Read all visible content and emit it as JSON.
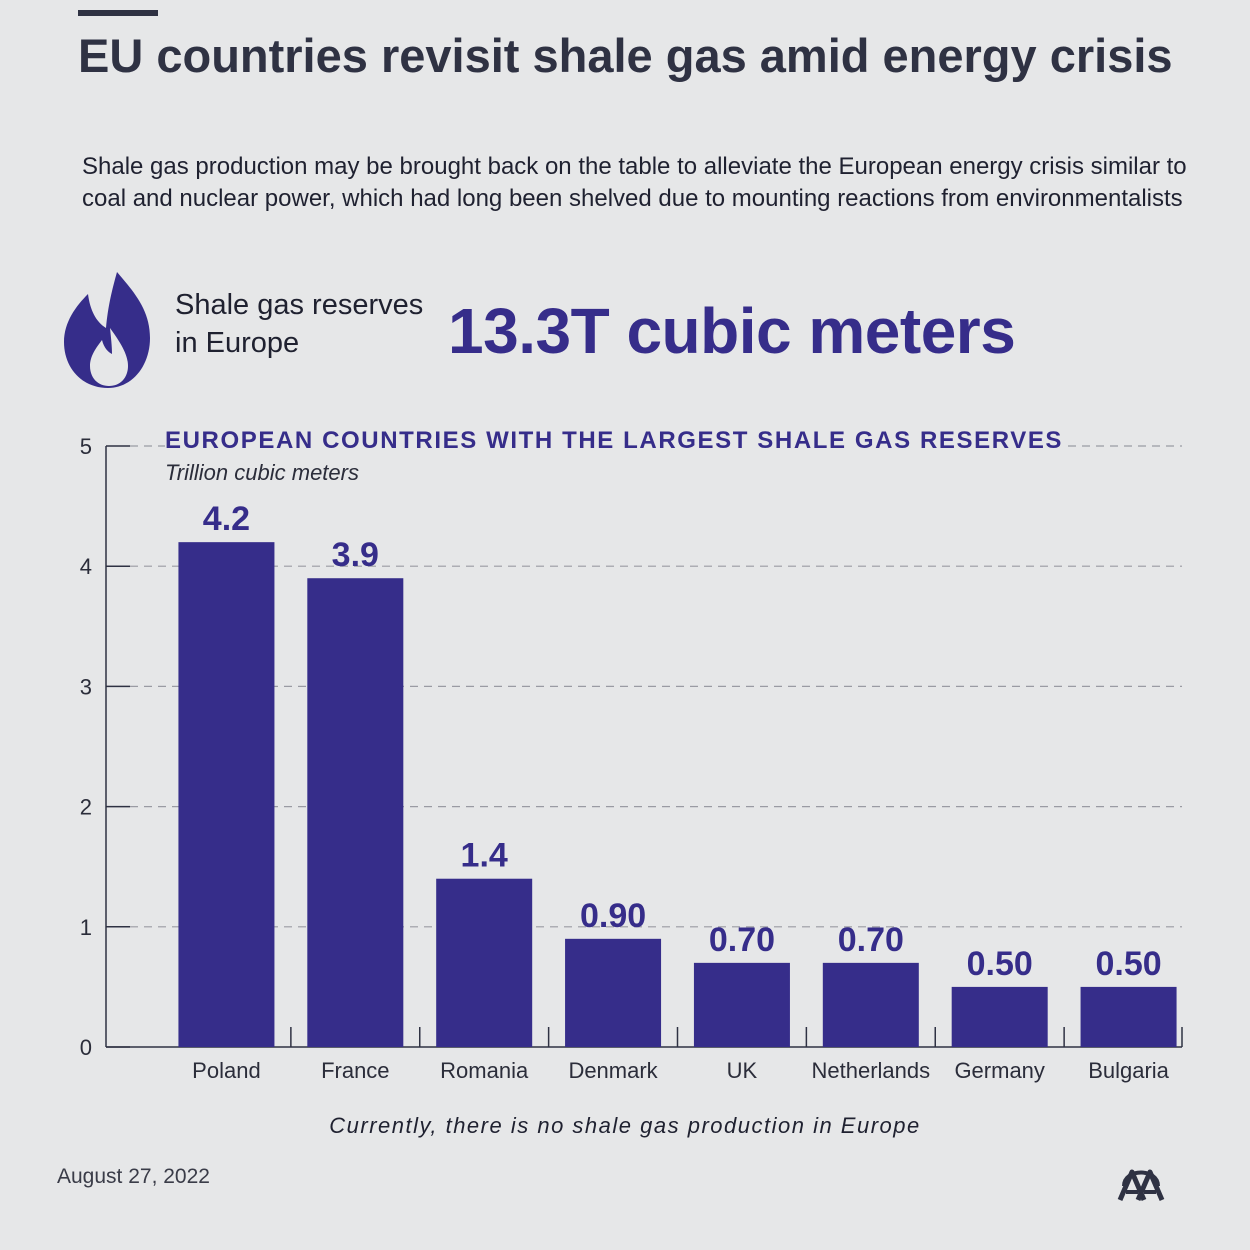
{
  "header": {
    "title": "EU countries revisit shale gas amid energy crisis",
    "subtitle": "Shale gas production may be brought back on the table to alleviate the European energy crisis similar to coal and nuclear power, which had long been shelved due to mounting reactions from environmentalists"
  },
  "stat": {
    "icon": "flame-icon",
    "label": "Shale gas reserves in Europe",
    "value": "13.3T cubic meters"
  },
  "chart_data": {
    "type": "bar",
    "title": "EUROPEAN COUNTRIES WITH THE LARGEST SHALE GAS RESERVES",
    "unit": "Trillion cubic meters",
    "categories": [
      "Poland",
      "France",
      "Romania",
      "Denmark",
      "UK",
      "Netherlands",
      "Germany",
      "Bulgaria"
    ],
    "values": [
      4.2,
      3.9,
      1.4,
      0.9,
      0.7,
      0.7,
      0.5,
      0.5
    ],
    "value_labels": [
      "4.2",
      "3.9",
      "1.4",
      "0.90",
      "0.70",
      "0.70",
      "0.50",
      "0.50"
    ],
    "ylim": [
      0,
      5
    ],
    "yticks": [
      "0",
      "1",
      "2",
      "3",
      "4",
      "5"
    ],
    "grid": true,
    "bar_color": "#362d8a",
    "grid_color": "#9a9ba3"
  },
  "footnote": "Currently, there is no shale gas production in Europe",
  "date": "August 27, 2022",
  "logo": {
    "icon": "aa-logo-icon",
    "text": "AA"
  },
  "colors": {
    "accent": "#362d8a",
    "background": "#e6e7e8",
    "text": "#2f3243"
  }
}
